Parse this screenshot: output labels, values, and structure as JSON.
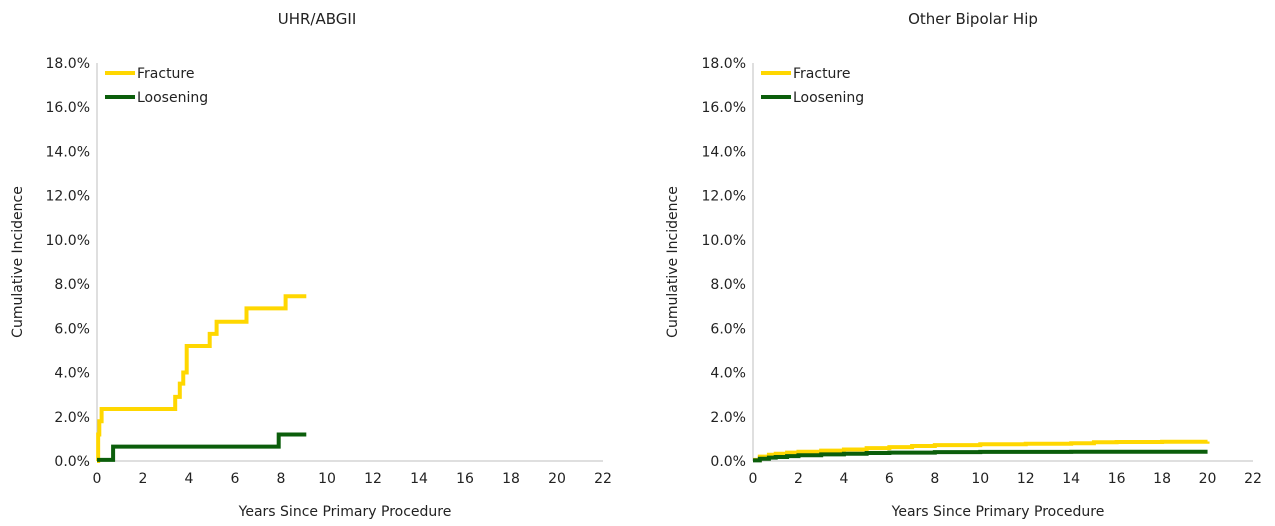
{
  "colors": {
    "fracture": "#FFD700",
    "loosening": "#0B5E0B",
    "axis": "#bfbfbf"
  },
  "chart_data": [
    {
      "type": "line",
      "step": true,
      "title": "UHR/ABGII",
      "xlabel": "Years Since Primary Procedure",
      "ylabel": "Cumulative Incidence",
      "xlim": [
        0,
        22
      ],
      "ylim": [
        0,
        18
      ],
      "xticks": [
        "0",
        "2",
        "4",
        "6",
        "8",
        "10",
        "12",
        "14",
        "16",
        "18",
        "20",
        "22"
      ],
      "yticks": [
        "0.0%",
        "2.0%",
        "4.0%",
        "6.0%",
        "8.0%",
        "10.0%",
        "12.0%",
        "14.0%",
        "16.0%",
        "18.0%"
      ],
      "legend": "top-left",
      "grid": false,
      "series": [
        {
          "name": "Fracture",
          "color": "#FFD700",
          "x": [
            0,
            0.05,
            0.1,
            0.2,
            3.4,
            3.6,
            3.75,
            3.9,
            4.9,
            5.2,
            6.5,
            8.2,
            9.1
          ],
          "y": [
            0,
            1.2,
            1.8,
            2.35,
            2.9,
            3.5,
            4.0,
            5.2,
            5.75,
            6.3,
            6.9,
            7.45,
            7.45
          ]
        },
        {
          "name": "Loosening",
          "color": "#0B5E0B",
          "x": [
            0,
            0.7,
            7.9,
            9.1
          ],
          "y": [
            0.05,
            0.65,
            1.2,
            1.2
          ]
        }
      ]
    },
    {
      "type": "line",
      "step": true,
      "title": "Other Bipolar Hip",
      "xlabel": "Years Since Primary Procedure",
      "ylabel": "Cumulative Incidence",
      "xlim": [
        0,
        22
      ],
      "ylim": [
        0,
        18
      ],
      "xticks": [
        "0",
        "2",
        "4",
        "6",
        "8",
        "10",
        "12",
        "14",
        "16",
        "18",
        "20",
        "22"
      ],
      "yticks": [
        "0.0%",
        "2.0%",
        "4.0%",
        "6.0%",
        "8.0%",
        "10.0%",
        "12.0%",
        "14.0%",
        "16.0%",
        "18.0%"
      ],
      "legend": "top-left",
      "grid": false,
      "series": [
        {
          "name": "Fracture",
          "color": "#FFD700",
          "x": [
            0,
            0.3,
            0.7,
            1,
            1.5,
            2,
            3,
            4,
            5,
            6,
            7,
            8,
            10,
            12,
            14,
            15,
            16,
            18,
            20
          ],
          "y": [
            0.05,
            0.2,
            0.28,
            0.33,
            0.38,
            0.42,
            0.47,
            0.52,
            0.58,
            0.63,
            0.68,
            0.72,
            0.76,
            0.78,
            0.8,
            0.85,
            0.86,
            0.87,
            0.88
          ]
        },
        {
          "name": "Loosening",
          "color": "#0B5E0B",
          "x": [
            0,
            0.3,
            0.7,
            1,
            1.5,
            2,
            3,
            4,
            5,
            6,
            8,
            10,
            12,
            14,
            16,
            18,
            20
          ],
          "y": [
            0.03,
            0.1,
            0.15,
            0.18,
            0.22,
            0.26,
            0.3,
            0.33,
            0.36,
            0.38,
            0.4,
            0.41,
            0.41,
            0.42,
            0.42,
            0.42,
            0.42
          ]
        }
      ]
    }
  ]
}
